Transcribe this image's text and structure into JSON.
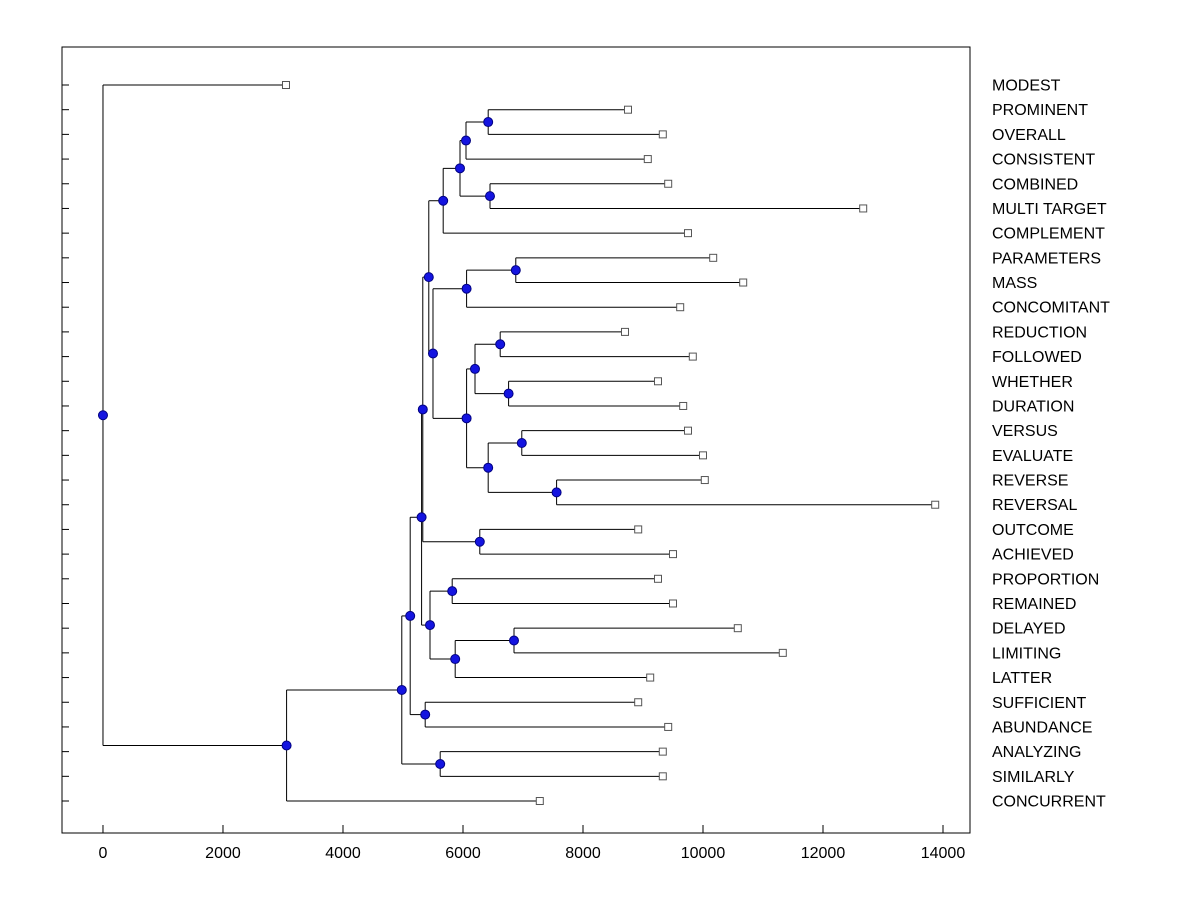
{
  "figure": {
    "background": "#ffffff",
    "plot_background": "#ffffff"
  },
  "chart_data": {
    "type": "dendrogram",
    "orientation": "horizontal-left-to-right",
    "title": "",
    "xlabel": "",
    "ylabel": "",
    "grid": false,
    "legend": null,
    "xlim": [
      -683,
      14450
    ],
    "x_ticks": [
      0,
      2000,
      4000,
      6000,
      8000,
      10000,
      12000,
      14000
    ],
    "x_tick_labels": [
      "0",
      "2000",
      "4000",
      "6000",
      "8000",
      "10000",
      "12000",
      "14000"
    ],
    "styles": {
      "axis_color": "#000000",
      "line_color": "#000000",
      "label_color": "#000000",
      "internal_node_marker": {
        "shape": "circle",
        "fill": "#1414e0",
        "stroke": "#000080",
        "size": 9
      },
      "leaf_marker": {
        "shape": "square",
        "fill": "#ffffff",
        "stroke": "#555555",
        "size": 7
      }
    },
    "leaves": [
      {
        "label": "MODEST",
        "tip_x": 3050
      },
      {
        "label": "PROMINENT",
        "tip_x": 8750
      },
      {
        "label": "OVERALL",
        "tip_x": 9330
      },
      {
        "label": "CONSISTENT",
        "tip_x": 9080
      },
      {
        "label": "COMBINED",
        "tip_x": 9420
      },
      {
        "label": "MULTI TARGET",
        "tip_x": 12670
      },
      {
        "label": "COMPLEMENT",
        "tip_x": 9750
      },
      {
        "label": "PARAMETERS",
        "tip_x": 10170
      },
      {
        "label": "MASS",
        "tip_x": 10670
      },
      {
        "label": "CONCOMITANT",
        "tip_x": 9620
      },
      {
        "label": "REDUCTION",
        "tip_x": 8700
      },
      {
        "label": "FOLLOWED",
        "tip_x": 9830
      },
      {
        "label": "WHETHER",
        "tip_x": 9250
      },
      {
        "label": "DURATION",
        "tip_x": 9670
      },
      {
        "label": "VERSUS",
        "tip_x": 9750
      },
      {
        "label": "EVALUATE",
        "tip_x": 10000
      },
      {
        "label": "REVERSE",
        "tip_x": 10030
      },
      {
        "label": "REVERSAL",
        "tip_x": 13870
      },
      {
        "label": "OUTCOME",
        "tip_x": 8920
      },
      {
        "label": "ACHIEVED",
        "tip_x": 9500
      },
      {
        "label": "PROPORTION",
        "tip_x": 9250
      },
      {
        "label": "REMAINED",
        "tip_x": 9500
      },
      {
        "label": "DELAYED",
        "tip_x": 10580
      },
      {
        "label": "LIMITING",
        "tip_x": 11330
      },
      {
        "label": "LATTER",
        "tip_x": 9120
      },
      {
        "label": "SUFFICIENT",
        "tip_x": 8920
      },
      {
        "label": "ABUNDANCE",
        "tip_x": 9420
      },
      {
        "label": "ANALYZING",
        "tip_x": 9330
      },
      {
        "label": "SIMILARLY",
        "tip_x": 9330
      },
      {
        "label": "CONCURRENT",
        "tip_x": 7280
      }
    ],
    "tree": {
      "x": 0,
      "children": [
        {
          "label": "MODEST",
          "x": 3050
        },
        {
          "x": 3060,
          "children": [
            {
              "x": 4980,
              "children": [
                {
                  "x": 5120,
                  "children": [
                    {
                      "x": 5310,
                      "children": [
                        {
                          "x": 5330,
                          "children": [
                            {
                              "x": 5430,
                              "children": [
                                {
                                  "x": 5670,
                                  "children": [
                                    {
                                      "x": 5950,
                                      "children": [
                                        {
                                          "x": 6050,
                                          "children": [
                                            {
                                              "x": 6420,
                                              "children": [
                                                {
                                                  "label": "PROMINENT",
                                                  "x": 8750
                                                },
                                                {
                                                  "label": "OVERALL",
                                                  "x": 9330
                                                }
                                              ]
                                            },
                                            {
                                              "label": "CONSISTENT",
                                              "x": 9080
                                            }
                                          ]
                                        },
                                        {
                                          "x": 6450,
                                          "children": [
                                            {
                                              "label": "COMBINED",
                                              "x": 9420
                                            },
                                            {
                                              "label": "MULTI TARGET",
                                              "x": 12670
                                            }
                                          ]
                                        }
                                      ]
                                    },
                                    {
                                      "label": "COMPLEMENT",
                                      "x": 9750
                                    }
                                  ]
                                },
                                {
                                  "x": 5500,
                                  "children": [
                                    {
                                      "x": 6060,
                                      "children": [
                                        {
                                          "x": 6880,
                                          "children": [
                                            {
                                              "label": "PARAMETERS",
                                              "x": 10170
                                            },
                                            {
                                              "label": "MASS",
                                              "x": 10670
                                            }
                                          ]
                                        },
                                        {
                                          "label": "CONCOMITANT",
                                          "x": 9620
                                        }
                                      ]
                                    },
                                    {
                                      "x": 6060,
                                      "children": [
                                        {
                                          "x": 6200,
                                          "children": [
                                            {
                                              "x": 6620,
                                              "children": [
                                                {
                                                  "label": "REDUCTION",
                                                  "x": 8700
                                                },
                                                {
                                                  "label": "FOLLOWED",
                                                  "x": 9830
                                                }
                                              ]
                                            },
                                            {
                                              "x": 6760,
                                              "children": [
                                                {
                                                  "label": "WHETHER",
                                                  "x": 9250
                                                },
                                                {
                                                  "label": "DURATION",
                                                  "x": 9670
                                                }
                                              ]
                                            }
                                          ]
                                        },
                                        {
                                          "x": 6420,
                                          "children": [
                                            {
                                              "x": 6980,
                                              "children": [
                                                {
                                                  "label": "VERSUS",
                                                  "x": 9750
                                                },
                                                {
                                                  "label": "EVALUATE",
                                                  "x": 10000
                                                }
                                              ]
                                            },
                                            {
                                              "x": 7560,
                                              "children": [
                                                {
                                                  "label": "REVERSE",
                                                  "x": 10030
                                                },
                                                {
                                                  "label": "REVERSAL",
                                                  "x": 13870
                                                }
                                              ]
                                            }
                                          ]
                                        }
                                      ]
                                    }
                                  ]
                                }
                              ]
                            },
                            {
                              "x": 6280,
                              "children": [
                                {
                                  "label": "OUTCOME",
                                  "x": 8920
                                },
                                {
                                  "label": "ACHIEVED",
                                  "x": 9500
                                }
                              ]
                            }
                          ]
                        },
                        {
                          "x": 5450,
                          "children": [
                            {
                              "x": 5820,
                              "children": [
                                {
                                  "label": "PROPORTION",
                                  "x": 9250
                                },
                                {
                                  "label": "REMAINED",
                                  "x": 9500
                                }
                              ]
                            },
                            {
                              "x": 5870,
                              "children": [
                                {
                                  "x": 6850,
                                  "children": [
                                    {
                                      "label": "DELAYED",
                                      "x": 10580
                                    },
                                    {
                                      "label": "LIMITING",
                                      "x": 11330
                                    }
                                  ]
                                },
                                {
                                  "label": "LATTER",
                                  "x": 9120
                                }
                              ]
                            }
                          ]
                        }
                      ]
                    },
                    {
                      "x": 5370,
                      "children": [
                        {
                          "label": "SUFFICIENT",
                          "x": 8920
                        },
                        {
                          "label": "ABUNDANCE",
                          "x": 9420
                        }
                      ]
                    }
                  ]
                },
                {
                  "x": 5620,
                  "children": [
                    {
                      "label": "ANALYZING",
                      "x": 9330
                    },
                    {
                      "label": "SIMILARLY",
                      "x": 9330
                    }
                  ]
                }
              ]
            },
            {
              "label": "CONCURRENT",
              "x": 7280
            }
          ]
        }
      ]
    }
  }
}
